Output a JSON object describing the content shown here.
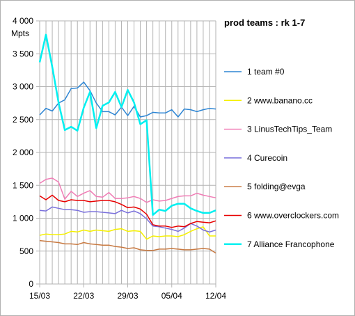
{
  "chart_data": {
    "type": "line",
    "title": "prod teams : rk 1-7",
    "ylabel": "Mpts",
    "xlabel": "",
    "ylim": [
      0,
      4000
    ],
    "y_ticks": [
      "0",
      "500",
      "1 000",
      "1 500",
      "2 000",
      "2 500",
      "3 000",
      "3 500",
      "4 000"
    ],
    "x_tick_labels": [
      "15/03",
      "22/03",
      "29/03",
      "05/04",
      "12/04"
    ],
    "grid": true,
    "legend_position": "right",
    "series": [
      {
        "name": "1 team #0",
        "color": "#2e86d4",
        "width": 1.5,
        "values": [
          2570,
          2670,
          2630,
          2750,
          2800,
          2970,
          2980,
          3070,
          2940,
          2750,
          2620,
          2620,
          2570,
          2690,
          2560,
          2700,
          2540,
          2560,
          2610,
          2600,
          2600,
          2650,
          2540,
          2660,
          2650,
          2620,
          2650,
          2670,
          2660
        ]
      },
      {
        "name": "2 www.banano.cc",
        "color": "#f5f000",
        "width": 1.5,
        "values": [
          740,
          760,
          750,
          750,
          760,
          800,
          790,
          820,
          800,
          820,
          810,
          800,
          830,
          840,
          800,
          810,
          800,
          680,
          730,
          720,
          730,
          730,
          720,
          750,
          800,
          840,
          870,
          730,
          730
        ]
      },
      {
        "name": "3 LinusTechTips_Team",
        "color": "#f07cb5",
        "width": 1.5,
        "values": [
          1530,
          1590,
          1610,
          1550,
          1290,
          1410,
          1330,
          1380,
          1420,
          1330,
          1320,
          1390,
          1300,
          1300,
          1310,
          1330,
          1300,
          1240,
          1280,
          1260,
          1270,
          1300,
          1330,
          1340,
          1340,
          1380,
          1350,
          1330,
          1310
        ]
      },
      {
        "name": "4 Curecoin",
        "color": "#7a70dc",
        "width": 1.5,
        "values": [
          1120,
          1110,
          1170,
          1150,
          1130,
          1130,
          1120,
          1090,
          1100,
          1100,
          1090,
          1080,
          1070,
          1120,
          1080,
          1110,
          1070,
          990,
          880,
          870,
          850,
          830,
          800,
          850,
          920,
          880,
          820,
          790,
          820
        ]
      },
      {
        "name": "5 folding@evga",
        "color": "#c87941",
        "width": 1.5,
        "values": [
          660,
          650,
          640,
          630,
          610,
          610,
          600,
          630,
          610,
          600,
          590,
          590,
          570,
          560,
          540,
          550,
          520,
          510,
          510,
          530,
          530,
          540,
          530,
          520,
          520,
          530,
          540,
          530,
          470
        ]
      },
      {
        "name": "6 www.overclockers.com",
        "color": "#e80000",
        "width": 1.5,
        "values": [
          1340,
          1280,
          1350,
          1270,
          1250,
          1280,
          1270,
          1270,
          1250,
          1260,
          1270,
          1270,
          1250,
          1210,
          1160,
          1170,
          1140,
          1060,
          900,
          880,
          880,
          860,
          880,
          870,
          920,
          950,
          940,
          930,
          960
        ]
      },
      {
        "name": "7 Alliance Francophone",
        "color": "#00f0f0",
        "width": 2.5,
        "values": [
          3370,
          3790,
          3300,
          2760,
          2340,
          2390,
          2330,
          2680,
          2920,
          2370,
          2710,
          2760,
          2920,
          2690,
          2950,
          2760,
          2430,
          2490,
          1050,
          1130,
          1110,
          1190,
          1220,
          1220,
          1150,
          1110,
          1080,
          1080,
          1120
        ]
      }
    ]
  }
}
